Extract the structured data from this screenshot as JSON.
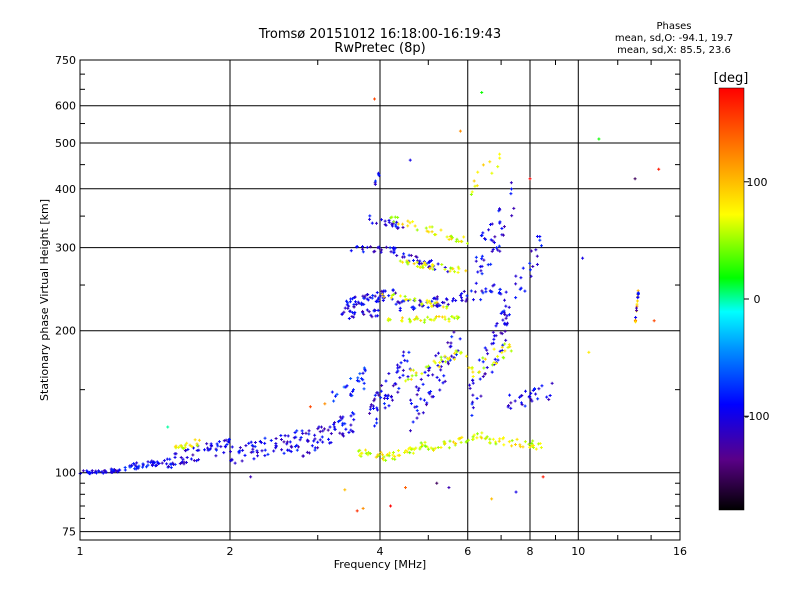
{
  "chart_data": {
    "type": "scatter",
    "title": "Tromsø 20151012 16:18:00-16:19:43",
    "subtitle": "RwPretec (8p)",
    "xlabel": "Frequency [MHz]",
    "ylabel": "Stationary phase Virtual Height [km]",
    "x_scale": "log",
    "y_scale": "log",
    "xlim": [
      1,
      16
    ],
    "ylim": [
      72,
      750
    ],
    "x_ticks": [
      1,
      2,
      4,
      6,
      8,
      10,
      16
    ],
    "x_tick_labels": [
      "1",
      "2",
      "4",
      "6",
      "8",
      "10",
      "16"
    ],
    "y_ticks": [
      75,
      100,
      200,
      300,
      400,
      500,
      600,
      750
    ],
    "y_tick_labels": [
      "75",
      "100",
      "200",
      "300",
      "400",
      "500",
      "600",
      "750"
    ],
    "grid": true,
    "colorbar": {
      "label": "[deg]",
      "range": [
        -180,
        180
      ],
      "ticks": [
        100,
        0,
        -100
      ],
      "tick_labels": [
        "100",
        "0",
        "-100"
      ],
      "colors": [
        "#000000",
        "#5a0088",
        "#0000ff",
        "#0090ff",
        "#00ffff",
        "#00ff00",
        "#ffff00",
        "#ff8000",
        "#ff0000"
      ]
    },
    "stats": {
      "heading": "Phases",
      "o_line": "mean, sd,O: -94.1, 19.7",
      "x_line": "mean, sd,X:  85.5, 23.6"
    },
    "traces": [
      {
        "f": [
          1.0,
          1.2
        ],
        "h": [
          100,
          101
        ],
        "phase": -100,
        "n": 40,
        "spread": 0.01
      },
      {
        "f": [
          1.2,
          1.5
        ],
        "h": [
          102,
          106
        ],
        "phase": -95,
        "n": 40,
        "spread": 0.015
      },
      {
        "f": [
          1.5,
          2.0
        ],
        "h": [
          106,
          115
        ],
        "phase": -100,
        "n": 60,
        "spread": 0.04
      },
      {
        "f": [
          2.0,
          2.8
        ],
        "h": [
          108,
          118
        ],
        "phase": -100,
        "n": 70,
        "spread": 0.05
      },
      {
        "f": [
          2.8,
          3.6
        ],
        "h": [
          115,
          130
        ],
        "phase": -100,
        "n": 60,
        "spread": 0.06
      },
      {
        "f": [
          1.55,
          1.75
        ],
        "h": [
          113,
          116
        ],
        "phase": 70,
        "n": 18,
        "spread": 0.02
      },
      {
        "f": [
          3.6,
          4.2
        ],
        "h": [
          110,
          108
        ],
        "phase": 70,
        "n": 25,
        "spread": 0.02
      },
      {
        "f": [
          4.2,
          5.0
        ],
        "h": [
          108,
          115
        ],
        "phase": 65,
        "n": 30,
        "spread": 0.02
      },
      {
        "f": [
          5.0,
          6.5
        ],
        "h": [
          112,
          120
        ],
        "phase": 70,
        "n": 35,
        "spread": 0.02
      },
      {
        "f": [
          6.5,
          8.5
        ],
        "h": [
          118,
          114
        ],
        "phase": 70,
        "n": 35,
        "spread": 0.02
      },
      {
        "f": [
          3.8,
          4.6
        ],
        "h": [
          130,
          175
        ],
        "phase": -100,
        "n": 55,
        "spread": 0.08
      },
      {
        "f": [
          4.6,
          5.8
        ],
        "h": [
          135,
          190
        ],
        "phase": -100,
        "n": 60,
        "spread": 0.1
      },
      {
        "f": [
          6.0,
          7.2
        ],
        "h": [
          140,
          210
        ],
        "phase": -100,
        "n": 50,
        "spread": 0.1
      },
      {
        "f": [
          7.2,
          9.0
        ],
        "h": [
          140,
          150
        ],
        "phase": -100,
        "n": 30,
        "spread": 0.04
      },
      {
        "f": [
          3.2,
          3.8
        ],
        "h": [
          148,
          160
        ],
        "phase": -80,
        "n": 25,
        "spread": 0.06
      },
      {
        "f": [
          4.5,
          6.0
        ],
        "h": [
          160,
          180
        ],
        "phase": 70,
        "n": 30,
        "spread": 0.03
      },
      {
        "f": [
          6.0,
          7.5
        ],
        "h": [
          160,
          190
        ],
        "phase": 70,
        "n": 25,
        "spread": 0.04
      },
      {
        "f": [
          3.4,
          4.3
        ],
        "h": [
          228,
          240
        ],
        "phase": -100,
        "n": 55,
        "spread": 0.025
      },
      {
        "f": [
          4.3,
          5.5
        ],
        "h": [
          225,
          232
        ],
        "phase": -100,
        "n": 40,
        "spread": 0.025
      },
      {
        "f": [
          5.5,
          7.0
        ],
        "h": [
          232,
          245
        ],
        "phase": -100,
        "n": 30,
        "spread": 0.03
      },
      {
        "f": [
          3.3,
          4.0
        ],
        "h": [
          215,
          218
        ],
        "phase": -100,
        "n": 25,
        "spread": 0.02
      },
      {
        "f": [
          4.0,
          5.8
        ],
        "h": [
          210,
          212
        ],
        "phase": 70,
        "n": 35,
        "spread": 0.015
      },
      {
        "f": [
          4.0,
          5.6
        ],
        "h": [
          238,
          225
        ],
        "phase": 70,
        "n": 25,
        "spread": 0.015
      },
      {
        "f": [
          3.5,
          4.3
        ],
        "h": [
          298,
          296
        ],
        "phase": -100,
        "n": 25,
        "spread": 0.015
      },
      {
        "f": [
          4.3,
          5.5
        ],
        "h": [
          290,
          270
        ],
        "phase": -100,
        "n": 30,
        "spread": 0.02
      },
      {
        "f": [
          4.3,
          6.0
        ],
        "h": [
          280,
          268
        ],
        "phase": 70,
        "n": 35,
        "spread": 0.015
      },
      {
        "f": [
          3.8,
          4.5
        ],
        "h": [
          345,
          330
        ],
        "phase": -100,
        "n": 20,
        "spread": 0.02
      },
      {
        "f": [
          4.2,
          6.0
        ],
        "h": [
          345,
          310
        ],
        "phase": 70,
        "n": 35,
        "spread": 0.02
      },
      {
        "f": [
          6.2,
          7.5
        ],
        "h": [
          270,
          380
        ],
        "phase": -100,
        "n": 45,
        "spread": 0.12
      },
      {
        "f": [
          7.0,
          8.5
        ],
        "h": [
          210,
          320
        ],
        "phase": -100,
        "n": 30,
        "spread": 0.1
      },
      {
        "f": [
          6.0,
          7.0
        ],
        "h": [
          400,
          470
        ],
        "phase": 70,
        "n": 12,
        "spread": 0.05
      },
      {
        "f": [
          3.9,
          4.0
        ],
        "h": [
          410,
          435
        ],
        "phase": -100,
        "n": 6,
        "spread": 0.02
      },
      {
        "f": [
          13.0,
          13.2
        ],
        "h": [
          205,
          245
        ],
        "phase": 100,
        "n": 12,
        "spread": 0.01
      },
      {
        "f": [
          13.0,
          13.2
        ],
        "h": [
          208,
          240
        ],
        "phase": -100,
        "n": 8,
        "spread": 0.01
      }
    ],
    "scatter_points": [
      {
        "f": 6.4,
        "h": 640,
        "phase": 20
      },
      {
        "f": 3.9,
        "h": 620,
        "phase": 150
      },
      {
        "f": 5.8,
        "h": 530,
        "phase": 120
      },
      {
        "f": 11.0,
        "h": 510,
        "phase": 20
      },
      {
        "f": 4.6,
        "h": 460,
        "phase": -100
      },
      {
        "f": 13.0,
        "h": 420,
        "phase": -150
      },
      {
        "f": 14.5,
        "h": 440,
        "phase": 170
      },
      {
        "f": 10.2,
        "h": 285,
        "phase": -100
      },
      {
        "f": 14.2,
        "h": 210,
        "phase": 150
      },
      {
        "f": 10.5,
        "h": 180,
        "phase": 80
      },
      {
        "f": 8.0,
        "h": 420,
        "phase": 180
      },
      {
        "f": 3.6,
        "h": 83,
        "phase": 160
      },
      {
        "f": 3.7,
        "h": 84,
        "phase": 120
      },
      {
        "f": 4.2,
        "h": 85,
        "phase": 180
      },
      {
        "f": 3.4,
        "h": 92,
        "phase": 100
      },
      {
        "f": 4.5,
        "h": 93,
        "phase": 140
      },
      {
        "f": 5.2,
        "h": 95,
        "phase": -150
      },
      {
        "f": 5.5,
        "h": 93,
        "phase": -120
      },
      {
        "f": 6.7,
        "h": 88,
        "phase": 100
      },
      {
        "f": 7.5,
        "h": 91,
        "phase": -100
      },
      {
        "f": 8.5,
        "h": 98,
        "phase": 170
      },
      {
        "f": 1.5,
        "h": 125,
        "phase": 0
      },
      {
        "f": 2.9,
        "h": 138,
        "phase": 150
      },
      {
        "f": 3.1,
        "h": 140,
        "phase": 120
      },
      {
        "f": 2.2,
        "h": 98,
        "phase": -120
      }
    ]
  }
}
